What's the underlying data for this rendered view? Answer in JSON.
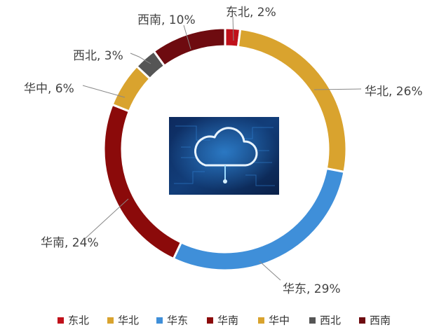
{
  "chart_data": {
    "type": "pie",
    "variant": "donut",
    "categories": [
      "东北",
      "华北",
      "华东",
      "华南",
      "华中",
      "西北",
      "西南"
    ],
    "values": [
      2,
      26,
      29,
      24,
      6,
      3,
      10
    ],
    "unit": "%",
    "data_labels": [
      "东北, 2%",
      "华北, 26%",
      "华东, 29%",
      "华南, 24%",
      "华中, 6%",
      "西北, 3%",
      "西南, 10%"
    ],
    "colors": [
      "#c0101a",
      "#d9a32e",
      "#3f8fd9",
      "#8b0a0a",
      "#d9a32e",
      "#555555",
      "#6e0b10"
    ],
    "legend": {
      "position": "bottom",
      "entries": [
        "东北",
        "华北",
        "华东",
        "华南",
        "华中",
        "西北",
        "西南"
      ]
    },
    "center_image": "cloud-computing-icon"
  }
}
